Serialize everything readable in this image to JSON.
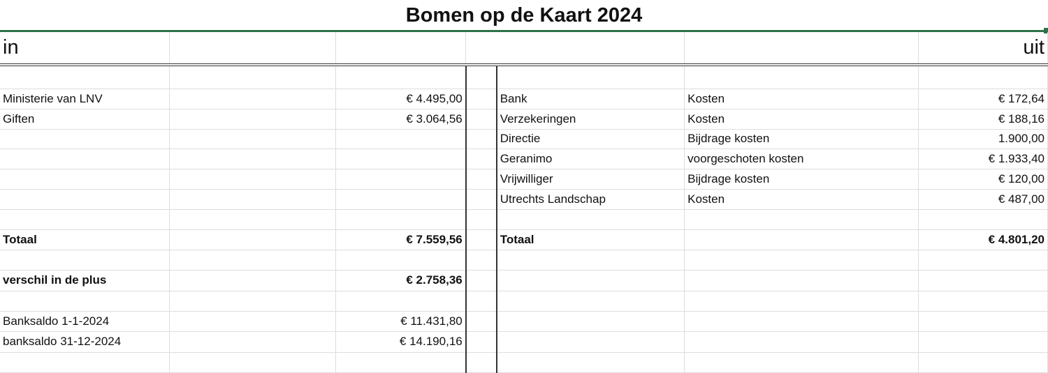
{
  "title": "Bomen op de  Kaart 2024",
  "headers": {
    "in": "in",
    "uit": "uit"
  },
  "rows": [
    {
      "in_label": "",
      "in_amount": "",
      "out_label": "",
      "out_type": "",
      "out_amount": ""
    },
    {
      "in_label": "Ministerie van LNV",
      "in_amount": "€ 4.495,00",
      "out_label": "Bank",
      "out_type": "Kosten",
      "out_amount": "€ 172,64"
    },
    {
      "in_label": "Giften",
      "in_amount": "€ 3.064,56",
      "out_label": "Verzekeringen",
      "out_type": "Kosten",
      "out_amount": "€ 188,16"
    },
    {
      "in_label": "",
      "in_amount": "",
      "out_label": "Directie",
      "out_type": "Bijdrage kosten",
      "out_amount": "1.900,00"
    },
    {
      "in_label": "",
      "in_amount": "",
      "out_label": "Geranimo",
      "out_type": "voorgeschoten kosten",
      "out_amount": "€ 1.933,40"
    },
    {
      "in_label": "",
      "in_amount": "",
      "out_label": "Vrijwilliger",
      "out_type": "Bijdrage kosten",
      "out_amount": "€ 120,00"
    },
    {
      "in_label": "",
      "in_amount": "",
      "out_label": "Utrechts Landschap",
      "out_type": "Kosten",
      "out_amount": "€ 487,00"
    },
    {
      "in_label": "",
      "in_amount": "",
      "out_label": "",
      "out_type": "",
      "out_amount": ""
    },
    {
      "in_label": "Totaal",
      "in_amount": "€ 7.559,56",
      "out_label": "Totaal",
      "out_type": "",
      "out_amount": "€ 4.801,20",
      "bold": true
    },
    {
      "in_label": "",
      "in_amount": "",
      "out_label": "",
      "out_type": "",
      "out_amount": ""
    },
    {
      "in_label": "verschil in de plus",
      "in_amount": "€ 2.758,36",
      "out_label": "",
      "out_type": "",
      "out_amount": "",
      "bold": true
    },
    {
      "in_label": "",
      "in_amount": "",
      "out_label": "",
      "out_type": "",
      "out_amount": ""
    },
    {
      "in_label": "Banksaldo 1-1-2024",
      "in_amount": "€ 11.431,80",
      "out_label": "",
      "out_type": "",
      "out_amount": ""
    },
    {
      "in_label": "banksaldo 31-12-2024",
      "in_amount": "€ 14.190,16",
      "out_label": "",
      "out_type": "",
      "out_amount": ""
    },
    {
      "in_label": "",
      "in_amount": "",
      "out_label": "",
      "out_type": "",
      "out_amount": ""
    }
  ]
}
